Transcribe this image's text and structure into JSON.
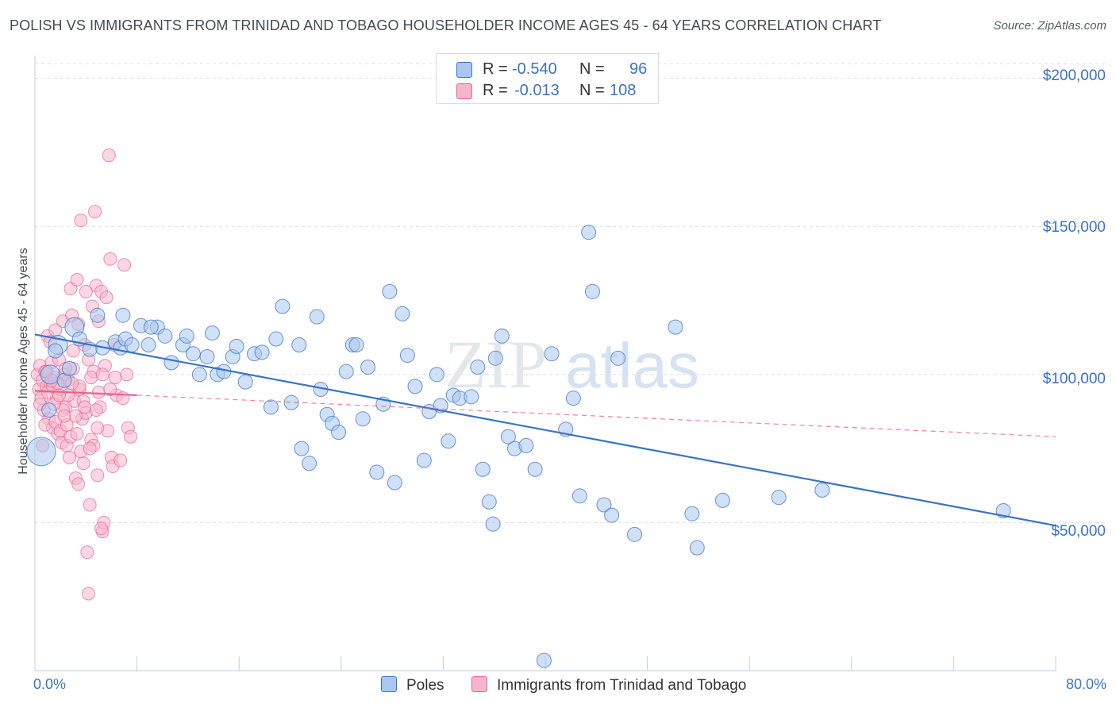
{
  "title": "POLISH VS IMMIGRANTS FROM TRINIDAD AND TOBAGO HOUSEHOLDER INCOME AGES 45 - 64 YEARS CORRELATION CHART",
  "source": "Source: ZipAtlas.com",
  "watermark": {
    "zip": "ZIP",
    "atlas": "atlas"
  },
  "colors": {
    "blue": "#3a73c7",
    "blue_fill": "#a9c7ef",
    "pink": "#e8628f",
    "pink_fill": "#f5b6cc",
    "grid": "#d9dde3"
  },
  "legend": {
    "rows": [
      {
        "r_label": "R =",
        "r_value": "-0.540",
        "n_label": "N =",
        "n_value": "96"
      },
      {
        "r_label": "R =",
        "r_value": "-0.013",
        "n_label": "N =",
        "n_value": "108"
      }
    ]
  },
  "bottom_legend": {
    "poles": "Poles",
    "trinidad": "Immigrants from Trinidad and Tobago"
  },
  "chart_data": {
    "type": "scatter",
    "xlabel": "",
    "ylabel": "Householder Income Ages 45 - 64 years",
    "xlim": [
      0,
      80
    ],
    "ylim": [
      0,
      205000
    ],
    "x_tick_labels": {
      "left": "0.0%",
      "right": "80.0%"
    },
    "y_tick_labels": [
      "$50,000",
      "$100,000",
      "$150,000",
      "$200,000"
    ],
    "y_ticks": [
      50000,
      100000,
      150000,
      200000
    ],
    "grid": true,
    "legend_position": "top-center",
    "series": [
      {
        "name": "Poles",
        "trend": {
          "x": [
            0,
            80
          ],
          "y": [
            113500,
            49000
          ]
        },
        "points": [
          [
            0.5,
            74000
          ],
          [
            1.2,
            100000
          ],
          [
            1.8,
            110000
          ],
          [
            2.3,
            98000
          ],
          [
            3.1,
            116000
          ],
          [
            3.5,
            112000
          ],
          [
            4.9,
            120000
          ],
          [
            5.3,
            109000
          ],
          [
            6.3,
            111000
          ],
          [
            6.7,
            109000
          ],
          [
            7.1,
            112000
          ],
          [
            7.6,
            110000
          ],
          [
            8.3,
            116500
          ],
          [
            8.9,
            110000
          ],
          [
            9.6,
            116000
          ],
          [
            10.2,
            113000
          ],
          [
            10.7,
            104000
          ],
          [
            11.6,
            110000
          ],
          [
            11.9,
            113000
          ],
          [
            12.4,
            107000
          ],
          [
            12.9,
            100000
          ],
          [
            13.5,
            106000
          ],
          [
            13.9,
            114000
          ],
          [
            14.3,
            100000
          ],
          [
            14.8,
            101000
          ],
          [
            15.5,
            106000
          ],
          [
            15.8,
            109500
          ],
          [
            16.5,
            97500
          ],
          [
            17.2,
            107000
          ],
          [
            17.8,
            107500
          ],
          [
            18.5,
            89000
          ],
          [
            18.9,
            112000
          ],
          [
            19.4,
            123000
          ],
          [
            20.1,
            90500
          ],
          [
            20.7,
            110000
          ],
          [
            20.9,
            75000
          ],
          [
            21.5,
            70000
          ],
          [
            22.1,
            119500
          ],
          [
            22.4,
            95000
          ],
          [
            22.9,
            86500
          ],
          [
            23.3,
            83500
          ],
          [
            23.8,
            80500
          ],
          [
            24.4,
            101000
          ],
          [
            24.9,
            110000
          ],
          [
            25.2,
            110000
          ],
          [
            25.7,
            85000
          ],
          [
            26.1,
            102500
          ],
          [
            26.8,
            67000
          ],
          [
            27.3,
            90000
          ],
          [
            27.8,
            128000
          ],
          [
            28.2,
            63500
          ],
          [
            28.8,
            120500
          ],
          [
            29.2,
            106500
          ],
          [
            29.8,
            96000
          ],
          [
            30.5,
            71000
          ],
          [
            30.9,
            87500
          ],
          [
            31.5,
            100000
          ],
          [
            31.8,
            89500
          ],
          [
            32.4,
            77500
          ],
          [
            32.8,
            93000
          ],
          [
            33.3,
            92000
          ],
          [
            34.2,
            92500
          ],
          [
            34.7,
            102500
          ],
          [
            35.1,
            68000
          ],
          [
            35.6,
            57000
          ],
          [
            36.1,
            105500
          ],
          [
            36.6,
            113000
          ],
          [
            35.9,
            49500
          ],
          [
            37.1,
            79000
          ],
          [
            37.6,
            75000
          ],
          [
            38.5,
            76000
          ],
          [
            39.2,
            68000
          ],
          [
            39.9,
            3500
          ],
          [
            40.5,
            107000
          ],
          [
            41.6,
            81500
          ],
          [
            42.2,
            92000
          ],
          [
            42.7,
            59000
          ],
          [
            43.4,
            148000
          ],
          [
            43.7,
            128000
          ],
          [
            44.6,
            56000
          ],
          [
            45.2,
            52500
          ],
          [
            45.7,
            105500
          ],
          [
            47.0,
            46000
          ],
          [
            50.2,
            116000
          ],
          [
            51.5,
            53000
          ],
          [
            51.9,
            41500
          ],
          [
            53.9,
            57500
          ],
          [
            58.3,
            58500
          ],
          [
            61.7,
            61000
          ],
          [
            75.9,
            54000
          ],
          [
            1.1,
            88000
          ],
          [
            2.7,
            102000
          ],
          [
            4.3,
            108500
          ],
          [
            6.9,
            120000
          ],
          [
            9.1,
            116000
          ],
          [
            1.6,
            108000
          ]
        ]
      },
      {
        "name": "Immigrants from Trinidad and Tobago",
        "trend": {
          "x": [
            0,
            8
          ],
          "y": [
            94500,
            93000
          ]
        },
        "trend_extended": {
          "x": [
            8,
            80
          ],
          "y": [
            93000,
            79000
          ]
        },
        "points": [
          [
            0.2,
            100000
          ],
          [
            0.3,
            95000
          ],
          [
            0.4,
            103000
          ],
          [
            0.5,
            92000
          ],
          [
            0.6,
            98000
          ],
          [
            0.7,
            88000
          ],
          [
            0.8,
            101000
          ],
          [
            0.9,
            96000
          ],
          [
            1.0,
            113000
          ],
          [
            1.1,
            85000
          ],
          [
            1.2,
            97000
          ],
          [
            1.3,
            104000
          ],
          [
            1.4,
            82000
          ],
          [
            1.5,
            99000
          ],
          [
            1.6,
            115000
          ],
          [
            1.7,
            92000
          ],
          [
            1.8,
            80000
          ],
          [
            1.9,
            105000
          ],
          [
            2.0,
            95000
          ],
          [
            2.1,
            77000
          ],
          [
            2.2,
            118000
          ],
          [
            2.3,
            100000
          ],
          [
            2.4,
            89000
          ],
          [
            2.5,
            76000
          ],
          [
            2.6,
            98000
          ],
          [
            2.7,
            72000
          ],
          [
            2.8,
            129000
          ],
          [
            2.9,
            120000
          ],
          [
            3.0,
            102000
          ],
          [
            3.1,
            91000
          ],
          [
            3.2,
            65000
          ],
          [
            3.3,
            132000
          ],
          [
            3.4,
            63000
          ],
          [
            3.5,
            95000
          ],
          [
            3.6,
            152000
          ],
          [
            3.7,
            85000
          ],
          [
            3.8,
            70000
          ],
          [
            3.9,
            110000
          ],
          [
            4.0,
            87000
          ],
          [
            4.1,
            40000
          ],
          [
            4.2,
            26000
          ],
          [
            4.3,
            56000
          ],
          [
            4.4,
            78000
          ],
          [
            4.5,
            123000
          ],
          [
            4.6,
            101000
          ],
          [
            4.7,
            155000
          ],
          [
            4.8,
            130000
          ],
          [
            4.9,
            66000
          ],
          [
            5.0,
            94000
          ],
          [
            5.1,
            89000
          ],
          [
            5.2,
            128000
          ],
          [
            5.3,
            47000
          ],
          [
            5.4,
            50000
          ],
          [
            5.5,
            103000
          ],
          [
            5.6,
            126000
          ],
          [
            5.7,
            81000
          ],
          [
            5.8,
            174000
          ],
          [
            5.9,
            139000
          ],
          [
            6.0,
            72000
          ],
          [
            6.1,
            69000
          ],
          [
            6.2,
            110000
          ],
          [
            6.3,
            99000
          ],
          [
            6.4,
            93000
          ],
          [
            6.7,
            71000
          ],
          [
            6.9,
            92000
          ],
          [
            7.0,
            137000
          ],
          [
            7.2,
            100000
          ],
          [
            7.3,
            82000
          ],
          [
            7.5,
            79000
          ],
          [
            0.6,
            76000
          ],
          [
            0.8,
            83000
          ],
          [
            1.0,
            94000
          ],
          [
            1.2,
            111000
          ],
          [
            1.4,
            96000
          ],
          [
            1.6,
            84000
          ],
          [
            1.8,
            97000
          ],
          [
            2.0,
            81000
          ],
          [
            2.2,
            88000
          ],
          [
            2.4,
            102000
          ],
          [
            2.6,
            93000
          ],
          [
            2.8,
            79000
          ],
          [
            3.0,
            108000
          ],
          [
            3.2,
            86000
          ],
          [
            3.4,
            117000
          ],
          [
            3.6,
            74000
          ],
          [
            3.8,
            91000
          ],
          [
            4.0,
            128000
          ],
          [
            4.2,
            105000
          ],
          [
            4.4,
            99000
          ],
          [
            4.6,
            76000
          ],
          [
            4.8,
            88000
          ],
          [
            5.0,
            118000
          ],
          [
            5.2,
            48000
          ],
          [
            1.5,
            90000
          ],
          [
            2.5,
            83000
          ],
          [
            3.5,
            96000
          ],
          [
            0.9,
            101000
          ],
          [
            1.9,
            93000
          ],
          [
            2.9,
            97000
          ],
          [
            3.9,
            89000
          ],
          [
            4.9,
            82000
          ],
          [
            5.9,
            95000
          ],
          [
            0.4,
            90000
          ],
          [
            1.3,
            98000
          ],
          [
            2.3,
            86000
          ],
          [
            3.3,
            80000
          ],
          [
            4.3,
            75000
          ],
          [
            5.3,
            100000
          ]
        ]
      }
    ]
  }
}
